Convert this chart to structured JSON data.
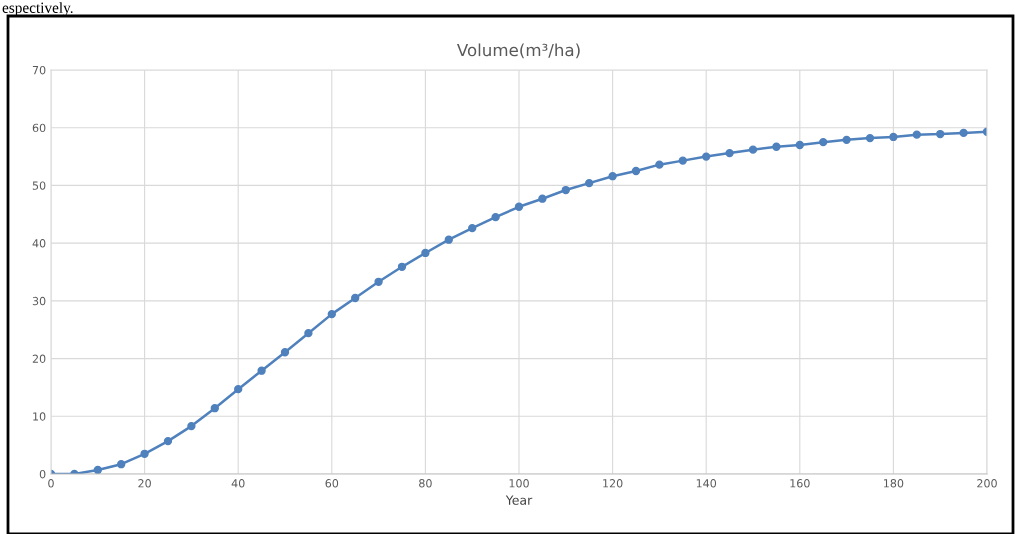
{
  "chart_data": {
    "type": "line",
    "title": "Volume(m³/ha)",
    "xlabel": "Year",
    "annotations": [
      "espectively."
    ],
    "x": [
      0,
      5,
      10,
      15,
      20,
      25,
      30,
      35,
      40,
      45,
      50,
      55,
      60,
      65,
      70,
      75,
      80,
      85,
      90,
      95,
      100,
      105,
      110,
      115,
      120,
      125,
      130,
      135,
      140,
      145,
      150,
      155,
      160,
      165,
      170,
      175,
      180,
      185,
      190,
      195,
      200
    ],
    "series": [
      {
        "color": "#4f81bd",
        "values": [
          0,
          0,
          0.7,
          1.7,
          3.5,
          5.7,
          8.3,
          11.4,
          14.7,
          17.9,
          21.1,
          24.4,
          27.7,
          30.5,
          33.3,
          35.9,
          38.3,
          40.6,
          42.6,
          44.5,
          46.3,
          47.7,
          49.2,
          50.4,
          51.6,
          52.5,
          53.6,
          54.3,
          55.0,
          55.6,
          56.2,
          56.7,
          57.0,
          57.5,
          57.9,
          58.2,
          58.4,
          58.8,
          58.9,
          59.1,
          59.3
        ]
      }
    ],
    "xlim": [
      0,
      200
    ],
    "xticks": [
      0,
      20,
      40,
      60,
      80,
      100,
      120,
      140,
      160,
      180,
      200
    ],
    "ylim": [
      0,
      70
    ],
    "yticks": [
      0,
      10,
      20,
      30,
      40,
      50,
      60,
      70
    ],
    "grid": true,
    "marker": "circle",
    "line_style": "solid"
  }
}
